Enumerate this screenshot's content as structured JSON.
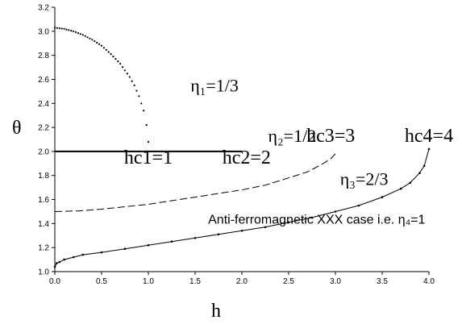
{
  "chart_data": {
    "type": "line",
    "xlabel": "h",
    "ylabel": "θ",
    "xlim": [
      0,
      4
    ],
    "ylim": [
      1.0,
      3.2
    ],
    "x_ticks": [
      "0.0",
      "0.5",
      "1.0",
      "1.5",
      "2.0",
      "2.5",
      "3.0",
      "3.5",
      "4.0"
    ],
    "y_ticks": [
      "1.0",
      "1.2",
      "1.4",
      "1.6",
      "1.8",
      "2.0",
      "2.2",
      "2.4",
      "2.6",
      "2.8",
      "3.0",
      "3.2"
    ],
    "grid": false,
    "series": [
      {
        "style": "dotted",
        "x": [
          0.0,
          0.1,
          0.2,
          0.3,
          0.4,
          0.5,
          0.6,
          0.7,
          0.8,
          0.85,
          0.9,
          0.95,
          0.98,
          1.0
        ],
        "y": [
          3.03,
          3.02,
          3.0,
          2.97,
          2.93,
          2.88,
          2.81,
          2.73,
          2.62,
          2.55,
          2.46,
          2.34,
          2.22,
          2.08
        ]
      },
      {
        "style": "solid",
        "x": [
          0.0,
          0.5,
          1.0,
          1.5,
          2.0
        ],
        "y": [
          2.0,
          2.0,
          2.0,
          2.0,
          2.0
        ]
      },
      {
        "style": "dashed",
        "x": [
          0.0,
          0.25,
          0.5,
          0.75,
          1.0,
          1.25,
          1.5,
          1.75,
          2.0,
          2.25,
          2.5,
          2.7,
          2.85,
          2.95,
          3.0
        ],
        "y": [
          1.5,
          1.505,
          1.52,
          1.54,
          1.56,
          1.59,
          1.62,
          1.65,
          1.68,
          1.72,
          1.78,
          1.83,
          1.89,
          1.94,
          1.98
        ]
      },
      {
        "style": "solid-markers",
        "x": [
          0.0,
          0.02,
          0.05,
          0.1,
          0.2,
          0.3,
          0.5,
          0.75,
          1.0,
          1.25,
          1.5,
          1.75,
          2.0,
          2.25,
          2.5,
          2.75,
          3.0,
          3.25,
          3.5,
          3.7,
          3.8,
          3.9,
          3.95,
          4.0
        ],
        "y": [
          1.04,
          1.07,
          1.08,
          1.1,
          1.12,
          1.14,
          1.16,
          1.19,
          1.22,
          1.25,
          1.28,
          1.31,
          1.34,
          1.37,
          1.41,
          1.45,
          1.5,
          1.55,
          1.62,
          1.69,
          1.74,
          1.82,
          1.88,
          2.02
        ]
      }
    ],
    "annotations": [
      {
        "id": "eta1",
        "text": "η₁=1/3",
        "x": 1.45,
        "y": 2.5
      },
      {
        "id": "eta2",
        "text": "η₂=1/2",
        "x": 2.28,
        "y": 2.08
      },
      {
        "id": "hc1",
        "text": "hc1=1",
        "x": 1.0,
        "y": 1.9
      },
      {
        "id": "hc2",
        "text": "hc2=2",
        "x": 2.05,
        "y": 1.9
      },
      {
        "id": "hc3",
        "text": "hc3=3",
        "x": 2.95,
        "y": 2.08
      },
      {
        "id": "eta3",
        "text": "η₃=2/3",
        "x": 3.05,
        "y": 1.72
      },
      {
        "id": "hc4",
        "text": "hc4=4",
        "x": 4.0,
        "y": 2.08
      },
      {
        "id": "xxx",
        "text": "Anti-ferromagnetic XXX case i.e. η₄=1",
        "x": 2.8,
        "y": 1.4
      }
    ]
  }
}
